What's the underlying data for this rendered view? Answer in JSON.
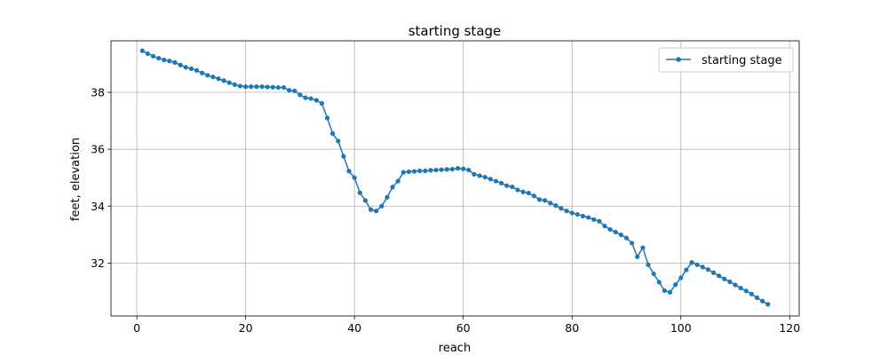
{
  "chart_data": {
    "type": "line",
    "title": "starting stage",
    "xlabel": "reach",
    "ylabel": "feet, elevation",
    "xlim": [
      -4.75,
      121.75
    ],
    "ylim": [
      30.14,
      39.81
    ],
    "xticks": [
      0,
      20,
      40,
      60,
      80,
      100,
      120
    ],
    "yticks": [
      32,
      34,
      36,
      38
    ],
    "grid": true,
    "legend_position": "top-right",
    "series": [
      {
        "name": "starting stage",
        "color": "#1f77b4",
        "marker": "circle",
        "x": [
          1,
          2,
          3,
          4,
          5,
          6,
          7,
          8,
          9,
          10,
          11,
          12,
          13,
          14,
          15,
          16,
          17,
          18,
          19,
          20,
          21,
          22,
          23,
          24,
          25,
          26,
          27,
          28,
          29,
          30,
          31,
          32,
          33,
          34,
          35,
          36,
          37,
          38,
          39,
          40,
          41,
          42,
          43,
          44,
          45,
          46,
          47,
          48,
          49,
          50,
          51,
          52,
          53,
          54,
          55,
          56,
          57,
          58,
          59,
          60,
          61,
          62,
          63,
          64,
          65,
          66,
          67,
          68,
          69,
          70,
          71,
          72,
          73,
          74,
          75,
          76,
          77,
          78,
          79,
          80,
          81,
          82,
          83,
          84,
          85,
          86,
          87,
          88,
          89,
          90,
          91,
          92,
          93,
          94,
          95,
          96,
          97,
          98,
          99,
          100,
          101,
          102,
          103,
          104,
          105,
          106,
          107,
          108,
          109,
          110,
          111,
          112,
          113,
          114,
          115,
          116
        ],
        "y": [
          39.46,
          39.36,
          39.27,
          39.2,
          39.14,
          39.1,
          39.05,
          38.96,
          38.88,
          38.83,
          38.77,
          38.68,
          38.6,
          38.54,
          38.48,
          38.41,
          38.34,
          38.27,
          38.22,
          38.2,
          38.2,
          38.2,
          38.2,
          38.19,
          38.18,
          38.17,
          38.17,
          38.07,
          38.05,
          37.91,
          37.81,
          37.78,
          37.72,
          37.61,
          37.1,
          36.55,
          36.29,
          35.75,
          35.23,
          35.0,
          34.47,
          34.2,
          33.88,
          33.83,
          34.0,
          34.31,
          34.67,
          34.88,
          35.19,
          35.21,
          35.22,
          35.24,
          35.24,
          35.26,
          35.27,
          35.28,
          35.29,
          35.3,
          35.33,
          35.31,
          35.27,
          35.12,
          35.07,
          35.02,
          34.95,
          34.88,
          34.81,
          34.72,
          34.68,
          34.57,
          34.5,
          34.46,
          34.36,
          34.23,
          34.2,
          34.11,
          34.02,
          33.92,
          33.83,
          33.76,
          33.71,
          33.65,
          33.6,
          33.53,
          33.47,
          33.3,
          33.18,
          33.09,
          32.99,
          32.88,
          32.7,
          32.22,
          32.54,
          31.94,
          31.62,
          31.33,
          31.03,
          30.97,
          31.24,
          31.48,
          31.76,
          32.02,
          31.94,
          31.86,
          31.77,
          31.66,
          31.55,
          31.44,
          31.34,
          31.23,
          31.12,
          31.02,
          30.91,
          30.78,
          30.66,
          30.55
        ]
      }
    ]
  }
}
